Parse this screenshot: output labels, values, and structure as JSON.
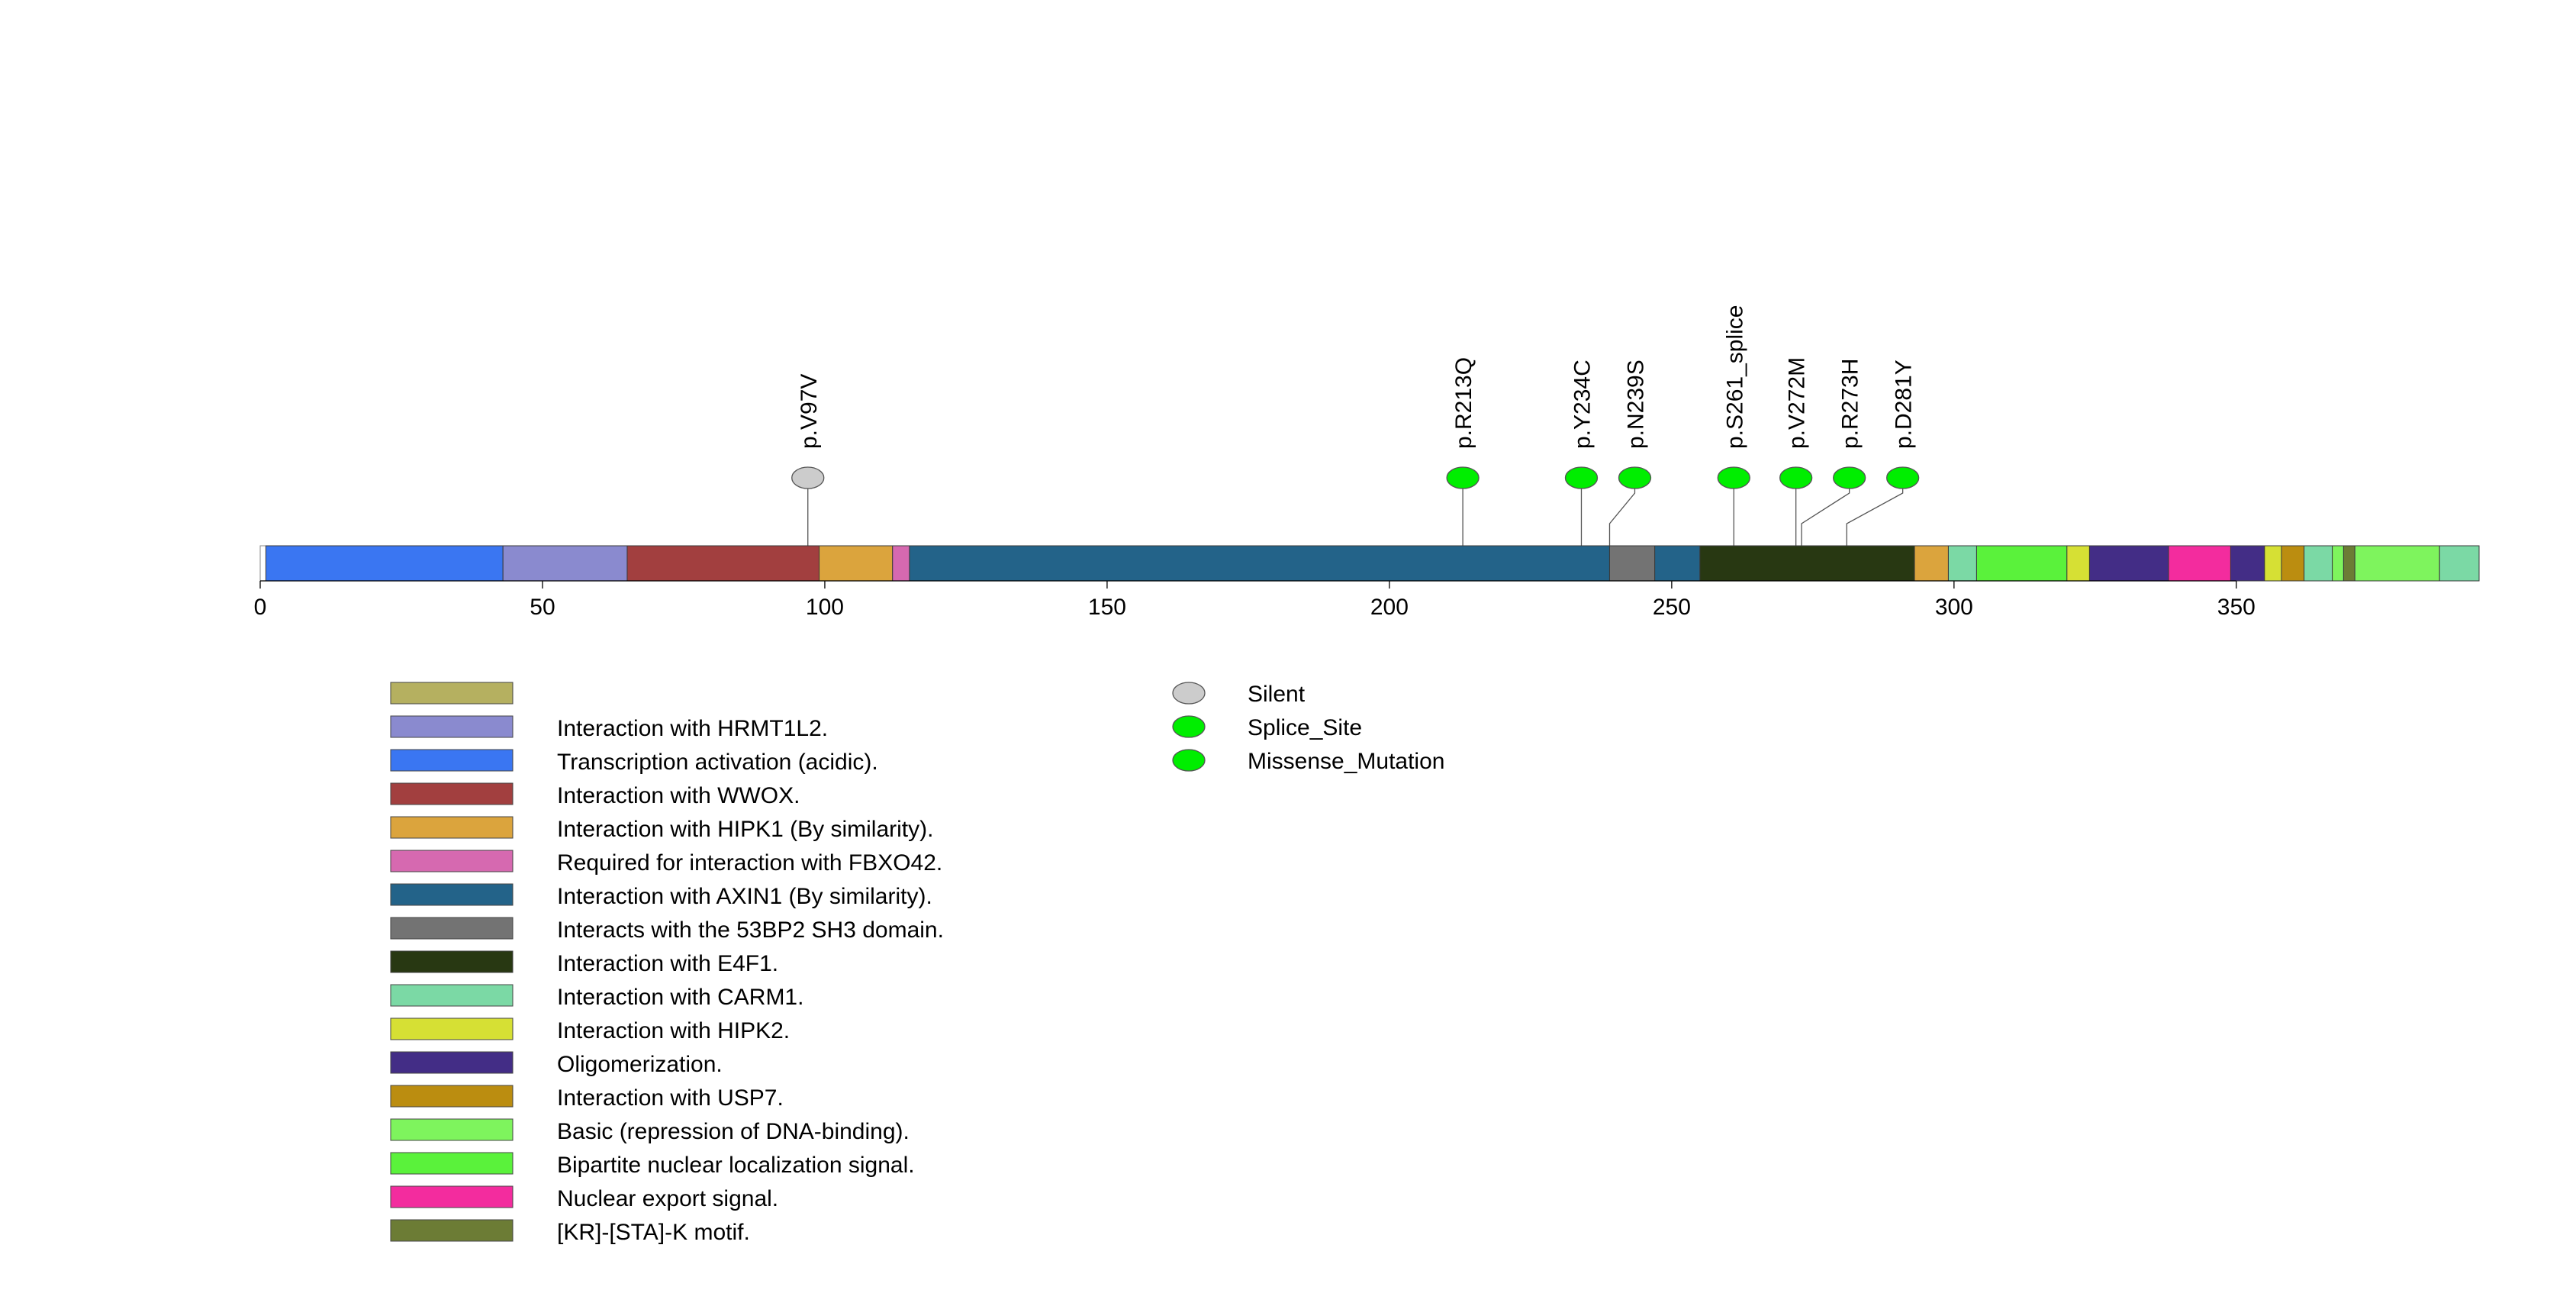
{
  "chart_data": {
    "type": "lollipop",
    "protein_length": 393,
    "x_axis": {
      "range": [
        0,
        393
      ],
      "ticks": [
        0,
        50,
        100,
        150,
        200,
        250,
        300,
        350
      ]
    },
    "domains": [
      {
        "label": "Transcription activation (acidic).",
        "start": 1,
        "end": 43,
        "color": "#3a76f2"
      },
      {
        "label": "Interaction with HRMT1L2.",
        "start": 43,
        "end": 65,
        "color": "#8a8acf"
      },
      {
        "label": "Interaction with WWOX.",
        "start": 65,
        "end": 99,
        "color": "#a23f3f"
      },
      {
        "label": "Interaction with HIPK1 (By similarity).",
        "start": 99,
        "end": 112,
        "color": "#dba43d"
      },
      {
        "label": "Required for interaction with FBXO42.",
        "start": 112,
        "end": 115,
        "color": "#d669b0"
      },
      {
        "label": "Interaction with AXIN1 (By similarity).",
        "start": 115,
        "end": 239,
        "color": "#236389"
      },
      {
        "label": "Interacts with the 53BP2 SH3 domain.",
        "start": 239,
        "end": 247,
        "color": "#737373"
      },
      {
        "label": "Interaction with AXIN1 (By similarity).",
        "start": 247,
        "end": 255,
        "color": "#236389"
      },
      {
        "label": "Interaction with E4F1.",
        "start": 255,
        "end": 293,
        "color": "#283812"
      },
      {
        "label": "Interaction with HIPK1 (By similarity).",
        "start": 293,
        "end": 299,
        "color": "#dba43d"
      },
      {
        "label": "Interaction with CARM1.",
        "start": 299,
        "end": 304,
        "color": "#7bd9a5"
      },
      {
        "label": "Bipartite nuclear localization signal.",
        "start": 304,
        "end": 320,
        "color": "#5af23b"
      },
      {
        "label": "Interaction with HIPK2.",
        "start": 320,
        "end": 324,
        "color": "#d6e034"
      },
      {
        "label": "Oligomerization.",
        "start": 324,
        "end": 338,
        "color": "#432d86"
      },
      {
        "label": "Nuclear export signal.",
        "start": 338,
        "end": 349,
        "color": "#f32c9e"
      },
      {
        "label": "Oligomerization.",
        "start": 349,
        "end": 355,
        "color": "#432d86"
      },
      {
        "label": "Interaction with HIPK2.",
        "start": 355,
        "end": 358,
        "color": "#d6e034"
      },
      {
        "label": "Interaction with USP7.",
        "start": 358,
        "end": 362,
        "color": "#bb8d10"
      },
      {
        "label": "Interaction with CARM1.",
        "start": 362,
        "end": 367,
        "color": "#7bd9a5"
      },
      {
        "label": "Basic (repression of DNA-binding).",
        "start": 367,
        "end": 369,
        "color": "#7ef45d"
      },
      {
        "label": "[KR]-[STA]-K motif.",
        "start": 369,
        "end": 371,
        "color": "#6c7c35"
      },
      {
        "label": "Basic (repression of DNA-binding).",
        "start": 371,
        "end": 386,
        "color": "#7ef45d"
      },
      {
        "label": "Interaction with CARM1.",
        "start": 386,
        "end": 393,
        "color": "#7bd9a5"
      }
    ],
    "mutations": [
      {
        "label": "p.V97V",
        "position": 97,
        "type": "Silent"
      },
      {
        "label": "p.R213Q",
        "position": 213,
        "type": "Missense_Mutation"
      },
      {
        "label": "p.Y234C",
        "position": 234,
        "type": "Missense_Mutation"
      },
      {
        "label": "p.N239S",
        "position": 239,
        "type": "Missense_Mutation"
      },
      {
        "label": "p.S261_splice",
        "position": 261,
        "type": "Splice_Site"
      },
      {
        "label": "p.V272M",
        "position": 272,
        "type": "Missense_Mutation"
      },
      {
        "label": "p.R273H",
        "position": 273,
        "type": "Missense_Mutation"
      },
      {
        "label": "p.D281Y",
        "position": 281,
        "type": "Missense_Mutation"
      }
    ],
    "domain_legend": [
      {
        "label": "",
        "color": "#b5b060"
      },
      {
        "label": "Interaction with HRMT1L2.",
        "color": "#8a8acf"
      },
      {
        "label": "Transcription activation (acidic).",
        "color": "#3a76f2"
      },
      {
        "label": "Interaction with WWOX.",
        "color": "#a23f3f"
      },
      {
        "label": "Interaction with HIPK1 (By similarity).",
        "color": "#dba43d"
      },
      {
        "label": "Required for interaction with FBXO42.",
        "color": "#d669b0"
      },
      {
        "label": "Interaction with AXIN1 (By similarity).",
        "color": "#236389"
      },
      {
        "label": "Interacts with the 53BP2 SH3 domain.",
        "color": "#737373"
      },
      {
        "label": "Interaction with E4F1.",
        "color": "#283812"
      },
      {
        "label": "Interaction with CARM1.",
        "color": "#7bd9a5"
      },
      {
        "label": "Interaction with HIPK2.",
        "color": "#d6e034"
      },
      {
        "label": "Oligomerization.",
        "color": "#432d86"
      },
      {
        "label": "Interaction with USP7.",
        "color": "#bb8d10"
      },
      {
        "label": "Basic (repression of DNA-binding).",
        "color": "#7ef45d"
      },
      {
        "label": "Bipartite nuclear localization signal.",
        "color": "#5af23b"
      },
      {
        "label": "Nuclear export signal.",
        "color": "#f32c9e"
      },
      {
        "label": "[KR]-[STA]-K motif.",
        "color": "#6c7c35"
      }
    ],
    "mutation_legend": [
      {
        "label": "Silent",
        "color": "#cccccc"
      },
      {
        "label": "Splice_Site",
        "color": "#00ee00"
      },
      {
        "label": "Missense_Mutation",
        "color": "#00ee00"
      }
    ]
  }
}
